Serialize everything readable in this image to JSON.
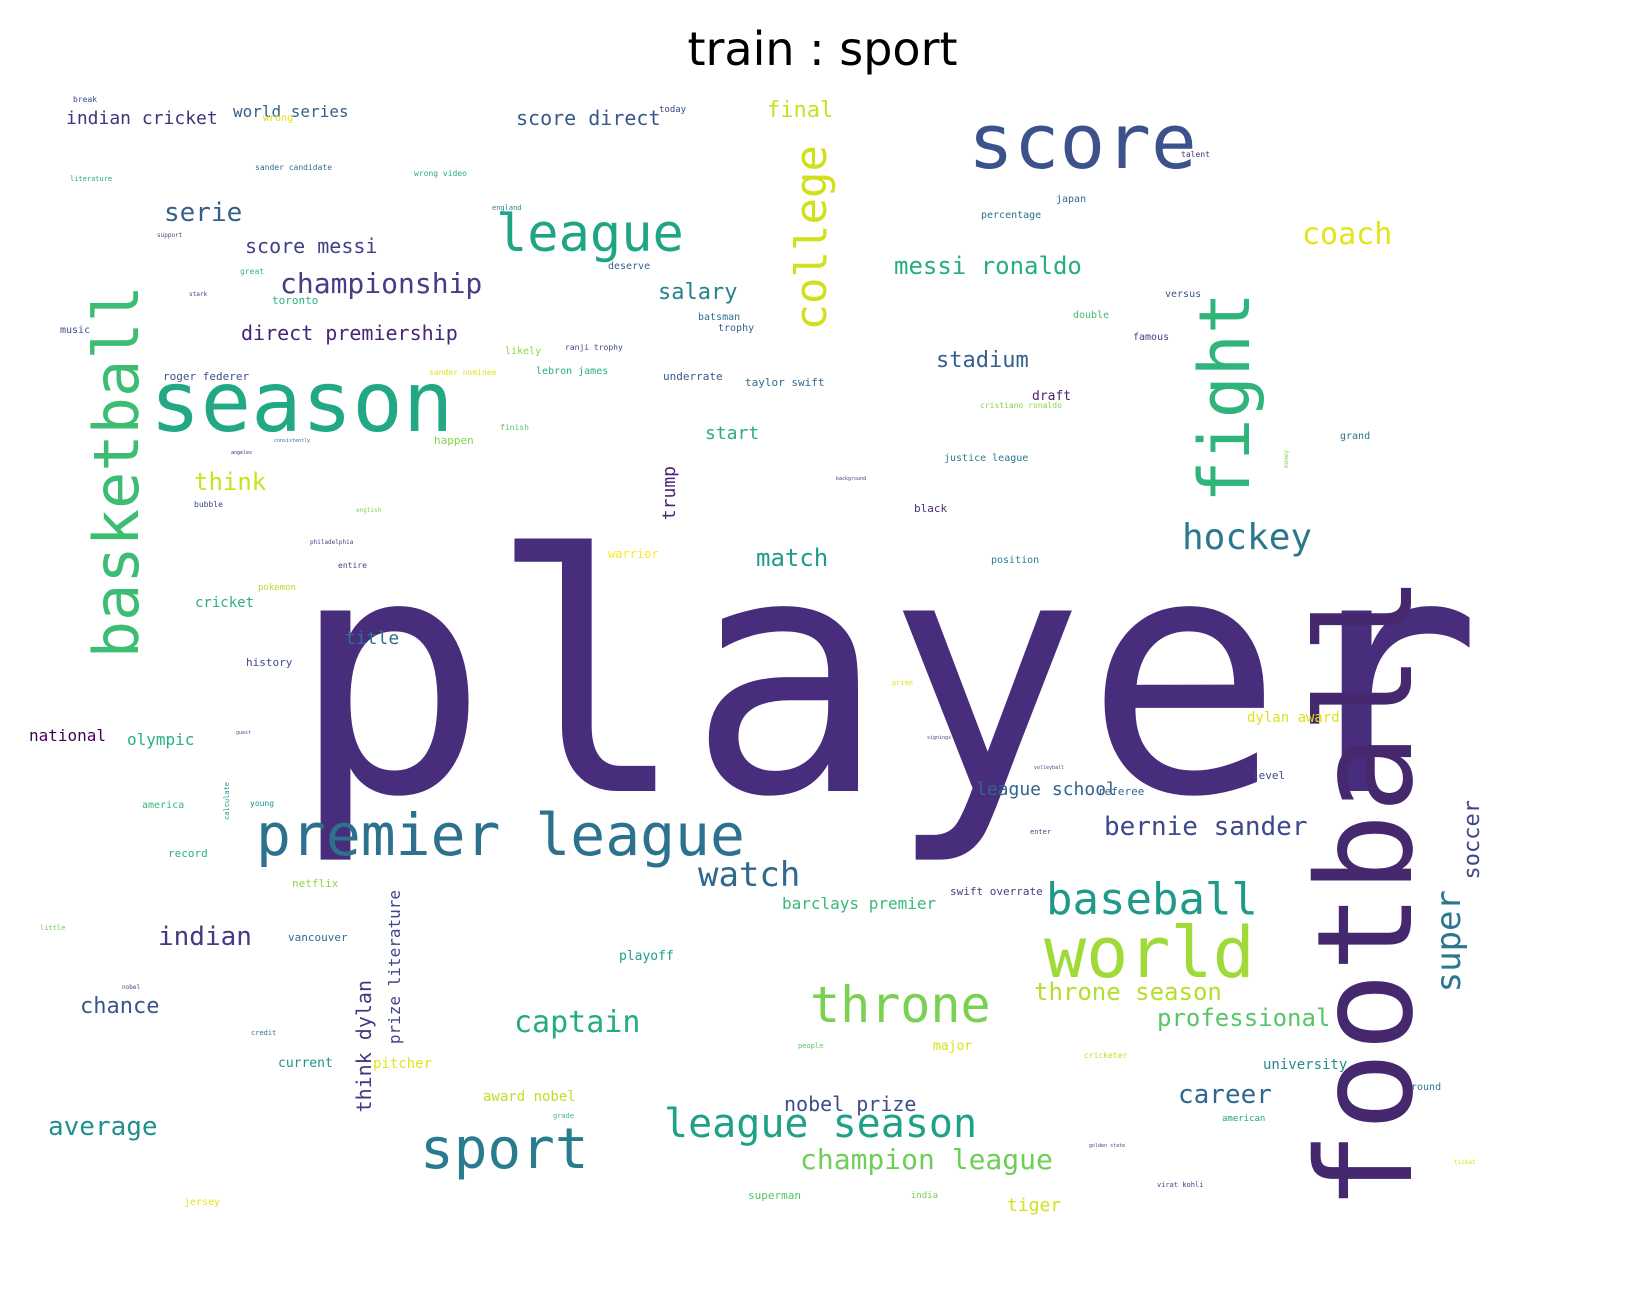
{
  "chart_data": {
    "type": "wordcloud",
    "title": "train : sport",
    "colormap": "viridis",
    "background": "#ffffff",
    "words": [
      {
        "text": "player",
        "weight": 1.0,
        "color": "#472d7b",
        "rotated": false
      },
      {
        "text": "football",
        "weight": 0.62,
        "color": "#46286f",
        "rotated": true
      },
      {
        "text": "season",
        "weight": 0.52,
        "color": "#22a884",
        "rotated": false
      },
      {
        "text": "basketball",
        "weight": 0.44,
        "color": "#3dbc74",
        "rotated": true
      },
      {
        "text": "score",
        "weight": 0.41,
        "color": "#3b528b",
        "rotated": false
      },
      {
        "text": "fight",
        "weight": 0.4,
        "color": "#2fb47c",
        "rotated": true
      },
      {
        "text": "premier league",
        "weight": 0.35,
        "color": "#2c728e",
        "rotated": false
      },
      {
        "text": "world",
        "weight": 0.34,
        "color": "#a0da39",
        "rotated": false
      },
      {
        "text": "college",
        "weight": 0.31,
        "color": "#d0e11c",
        "rotated": true
      },
      {
        "text": "league",
        "weight": 0.3,
        "color": "#20a486",
        "rotated": false
      },
      {
        "text": "sport",
        "weight": 0.3,
        "color": "#287c8e",
        "rotated": false
      },
      {
        "text": "throne",
        "weight": 0.29,
        "color": "#7ad151",
        "rotated": false
      },
      {
        "text": "baseball",
        "weight": 0.26,
        "color": "#1f9a8a",
        "rotated": false
      },
      {
        "text": "league season",
        "weight": 0.24,
        "color": "#1fa187",
        "rotated": false
      },
      {
        "text": "hockey",
        "weight": 0.22,
        "color": "#2a788e",
        "rotated": false
      },
      {
        "text": "watch",
        "weight": 0.21,
        "color": "#31688e",
        "rotated": false
      },
      {
        "text": "super",
        "weight": 0.2,
        "color": "#2a788e",
        "rotated": true
      },
      {
        "text": "championship",
        "weight": 0.19,
        "color": "#433e85",
        "rotated": false
      },
      {
        "text": "coach",
        "weight": 0.19,
        "color": "#e5e419",
        "rotated": false
      },
      {
        "text": "captain",
        "weight": 0.19,
        "color": "#25ab82",
        "rotated": false
      },
      {
        "text": "bernie sander",
        "weight": 0.18,
        "color": "#3e4989",
        "rotated": false
      },
      {
        "text": "champion league",
        "weight": 0.18,
        "color": "#6ece58",
        "rotated": false
      },
      {
        "text": "serie",
        "weight": 0.18,
        "color": "#35608d",
        "rotated": false
      },
      {
        "text": "messi ronaldo",
        "weight": 0.17,
        "color": "#27ad81",
        "rotated": false
      },
      {
        "text": "professional",
        "weight": 0.17,
        "color": "#56c667",
        "rotated": false
      },
      {
        "text": "throne season",
        "weight": 0.17,
        "color": "#b5de2b",
        "rotated": false
      },
      {
        "text": "average",
        "weight": 0.17,
        "color": "#21908d",
        "rotated": false
      },
      {
        "text": "indian",
        "weight": 0.17,
        "color": "#443983",
        "rotated": false
      },
      {
        "text": "career",
        "weight": 0.17,
        "color": "#31688e",
        "rotated": false
      },
      {
        "text": "match",
        "weight": 0.16,
        "color": "#1e9c89",
        "rotated": false
      },
      {
        "text": "think",
        "weight": 0.16,
        "color": "#cae11f",
        "rotated": false
      },
      {
        "text": "soccer",
        "weight": 0.15,
        "color": "#404688",
        "rotated": true
      },
      {
        "text": "chance",
        "weight": 0.15,
        "color": "#39568c",
        "rotated": false
      },
      {
        "text": "salary",
        "weight": 0.15,
        "color": "#26828e",
        "rotated": false
      },
      {
        "text": "stadium",
        "weight": 0.15,
        "color": "#355f8d",
        "rotated": false
      },
      {
        "text": "score messi",
        "weight": 0.15,
        "color": "#424186",
        "rotated": false
      },
      {
        "text": "think dylan",
        "weight": 0.15,
        "color": "#453781",
        "rotated": true
      },
      {
        "text": "nobel prize",
        "weight": 0.14,
        "color": "#3d4e8a",
        "rotated": false
      },
      {
        "text": "score direct",
        "weight": 0.14,
        "color": "#38598c",
        "rotated": false
      },
      {
        "text": "direct premiership",
        "weight": 0.14,
        "color": "#482677",
        "rotated": false
      },
      {
        "text": "final",
        "weight": 0.14,
        "color": "#c8e020",
        "rotated": false
      },
      {
        "text": "start",
        "weight": 0.13,
        "color": "#29af7f",
        "rotated": false
      },
      {
        "text": "trump",
        "weight": 0.13,
        "color": "#482475",
        "rotated": true
      },
      {
        "text": "league school",
        "weight": 0.13,
        "color": "#33638d",
        "rotated": false
      },
      {
        "text": "indian cricket",
        "weight": 0.13,
        "color": "#46327e",
        "rotated": false
      },
      {
        "text": "prize literature",
        "weight": 0.12,
        "color": "#414487",
        "rotated": true
      },
      {
        "text": "title",
        "weight": 0.12,
        "color": "#2c718e",
        "rotated": false
      },
      {
        "text": "olympic",
        "weight": 0.11,
        "color": "#2ab07f",
        "rotated": false
      },
      {
        "text": "national",
        "weight": 0.11,
        "color": "#440154",
        "rotated": false
      },
      {
        "text": "world series",
        "weight": 0.11,
        "color": "#34618d",
        "rotated": false
      },
      {
        "text": "barclays premier",
        "weight": 0.11,
        "color": "#38b977",
        "rotated": false
      },
      {
        "text": "tiger",
        "weight": 0.11,
        "color": "#d2e21b",
        "rotated": false
      },
      {
        "text": "dylan award",
        "weight": 0.1,
        "color": "#dde318",
        "rotated": false
      },
      {
        "text": "award nobel",
        "weight": 0.1,
        "color": "#bddf26",
        "rotated": false
      },
      {
        "text": "cricket",
        "weight": 0.1,
        "color": "#29af7f",
        "rotated": false
      },
      {
        "text": "pitcher",
        "weight": 0.1,
        "color": "#e2e418",
        "rotated": false
      },
      {
        "text": "university",
        "weight": 0.09,
        "color": "#23898e",
        "rotated": false
      },
      {
        "text": "playoff",
        "weight": 0.09,
        "color": "#1f9e89",
        "rotated": false
      },
      {
        "text": "current",
        "weight": 0.09,
        "color": "#21918c",
        "rotated": false
      },
      {
        "text": "vancouver",
        "weight": 0.08,
        "color": "#2d708e",
        "rotated": false
      },
      {
        "text": "draft",
        "weight": 0.08,
        "color": "#481f70",
        "rotated": false
      },
      {
        "text": "major",
        "weight": 0.08,
        "color": "#d8e219",
        "rotated": false
      },
      {
        "text": "happen",
        "weight": 0.07,
        "color": "#84d44b",
        "rotated": false
      },
      {
        "text": "warrior",
        "weight": 0.07,
        "color": "#fde725",
        "rotated": false
      },
      {
        "text": "netflix",
        "weight": 0.07,
        "color": "#90d743",
        "rotated": false
      },
      {
        "text": "history",
        "weight": 0.07,
        "color": "#3e4a89",
        "rotated": false
      },
      {
        "text": "record",
        "weight": 0.07,
        "color": "#2eb37c",
        "rotated": false
      },
      {
        "text": "referee",
        "weight": 0.07,
        "color": "#31688e",
        "rotated": false
      },
      {
        "text": "level",
        "weight": 0.07,
        "color": "#3e4989",
        "rotated": false
      },
      {
        "text": "taylor swift",
        "weight": 0.07,
        "color": "#306a8e",
        "rotated": false
      },
      {
        "text": "swift overrate",
        "weight": 0.07,
        "color": "#433e85",
        "rotated": false
      },
      {
        "text": "superman",
        "weight": 0.07,
        "color": "#52c569",
        "rotated": false
      },
      {
        "text": "toronto",
        "weight": 0.07,
        "color": "#2db27d",
        "rotated": false
      },
      {
        "text": "lebron james",
        "weight": 0.06,
        "color": "#28ae80",
        "rotated": false
      },
      {
        "text": "roger federer",
        "weight": 0.06,
        "color": "#3c4f8a",
        "rotated": false
      },
      {
        "text": "black",
        "weight": 0.06,
        "color": "#472c7a",
        "rotated": false
      },
      {
        "text": "stadium_pad",
        "weight": 0.0,
        "color": "#ffffff",
        "rotated": false
      },
      {
        "text": "batsman",
        "weight": 0.06,
        "color": "#2c728e",
        "rotated": false
      },
      {
        "text": "underrate",
        "weight": 0.06,
        "color": "#38588c",
        "rotated": false
      },
      {
        "text": "america",
        "weight": 0.06,
        "color": "#35b779",
        "rotated": false
      },
      {
        "text": "jersey",
        "weight": 0.06,
        "color": "#e7e419",
        "rotated": false
      },
      {
        "text": "justice league",
        "weight": 0.06,
        "color": "#287d8e",
        "rotated": false
      },
      {
        "text": "famous",
        "weight": 0.06,
        "color": "#3f4788",
        "rotated": false
      },
      {
        "text": "round",
        "weight": 0.06,
        "color": "#2a788e",
        "rotated": false
      },
      {
        "text": "position",
        "weight": 0.06,
        "color": "#277f8e",
        "rotated": false
      },
      {
        "text": "percentage",
        "weight": 0.06,
        "color": "#2c728e",
        "rotated": false
      },
      {
        "text": "japan",
        "weight": 0.06,
        "color": "#31688e",
        "rotated": false
      },
      {
        "text": "deserve",
        "weight": 0.06,
        "color": "#34618d",
        "rotated": false
      },
      {
        "text": "trophy",
        "weight": 0.06,
        "color": "#33638d",
        "rotated": false
      },
      {
        "text": "versus",
        "weight": 0.06,
        "color": "#3b528b",
        "rotated": false
      },
      {
        "text": "double",
        "weight": 0.06,
        "color": "#40bd72",
        "rotated": false
      },
      {
        "text": "grand",
        "weight": 0.06,
        "color": "#2a788e",
        "rotated": false
      },
      {
        "text": "today",
        "weight": 0.05,
        "color": "#3e4a89",
        "rotated": false
      },
      {
        "text": "music",
        "weight": 0.05,
        "color": "#3b528b",
        "rotated": false
      },
      {
        "text": "likely",
        "weight": 0.05,
        "color": "#8ed645",
        "rotated": false
      },
      {
        "text": "pokemon",
        "weight": 0.05,
        "color": "#b2dd2d",
        "rotated": false
      },
      {
        "text": "wrong",
        "weight": 0.05,
        "color": "#dfe318",
        "rotated": false
      },
      {
        "text": "american",
        "weight": 0.05,
        "color": "#20a386",
        "rotated": false
      },
      {
        "text": "india",
        "weight": 0.05,
        "color": "#73d056",
        "rotated": false
      },
      {
        "text": "young",
        "weight": 0.05,
        "color": "#21918c",
        "rotated": false
      },
      {
        "text": "cricketer",
        "weight": 0.05,
        "color": "#c2df23",
        "rotated": false
      },
      {
        "text": "ranji trophy",
        "weight": 0.04,
        "color": "#3e4989",
        "rotated": false
      },
      {
        "text": "sander candidate",
        "weight": 0.04,
        "color": "#2d708e",
        "rotated": false
      },
      {
        "text": "wrong video",
        "weight": 0.04,
        "color": "#25ac82",
        "rotated": false
      },
      {
        "text": "entire",
        "weight": 0.04,
        "color": "#404588",
        "rotated": false
      },
      {
        "text": "finish",
        "weight": 0.04,
        "color": "#56c667",
        "rotated": false
      },
      {
        "text": "great",
        "weight": 0.04,
        "color": "#35b779",
        "rotated": false
      },
      {
        "text": "bubble",
        "weight": 0.04,
        "color": "#3e4a89",
        "rotated": false
      },
      {
        "text": "break",
        "weight": 0.04,
        "color": "#3e4a89",
        "rotated": false
      },
      {
        "text": "talent",
        "weight": 0.04,
        "color": "#46327e",
        "rotated": false
      },
      {
        "text": "sander nominee",
        "weight": 0.04,
        "color": "#dde318",
        "rotated": false
      },
      {
        "text": "cristiano ronaldo",
        "weight": 0.04,
        "color": "#86d549",
        "rotated": false
      },
      {
        "text": "england",
        "weight": 0.04,
        "color": "#25848e",
        "rotated": false
      },
      {
        "text": "literature",
        "weight": 0.03,
        "color": "#22a884",
        "rotated": false
      },
      {
        "text": "support",
        "weight": 0.03,
        "color": "#3e4a89",
        "rotated": false
      },
      {
        "text": "stark",
        "weight": 0.03,
        "color": "#3e4989",
        "rotated": false
      },
      {
        "text": "philadelphia",
        "weight": 0.03,
        "color": "#404688",
        "rotated": false
      },
      {
        "text": "english",
        "weight": 0.03,
        "color": "#7fd34e",
        "rotated": false
      },
      {
        "text": "angeles",
        "weight": 0.03,
        "color": "#472a7a",
        "rotated": false
      },
      {
        "text": "consistently",
        "weight": 0.03,
        "color": "#2e6f8e",
        "rotated": false
      },
      {
        "text": "prime",
        "weight": 0.03,
        "color": "#e2e418",
        "rotated": false
      },
      {
        "text": "background",
        "weight": 0.03,
        "color": "#3f4788",
        "rotated": false
      },
      {
        "text": "calculate",
        "weight": 0.03,
        "color": "#1f998a",
        "rotated": true
      },
      {
        "text": "little",
        "weight": 0.03,
        "color": "#6ece58",
        "rotated": false
      },
      {
        "text": "nobel",
        "weight": 0.03,
        "color": "#3e4a89",
        "rotated": false
      },
      {
        "text": "credit",
        "weight": 0.03,
        "color": "#2c728e",
        "rotated": false
      },
      {
        "text": "guest",
        "weight": 0.03,
        "color": "#3b528b",
        "rotated": false
      },
      {
        "text": "people",
        "weight": 0.03,
        "color": "#56c667",
        "rotated": false
      },
      {
        "text": "grade",
        "weight": 0.03,
        "color": "#3aba76",
        "rotated": false
      },
      {
        "text": "league_pad",
        "weight": 0.0,
        "color": "#ffffff",
        "rotated": false
      },
      {
        "text": "enter",
        "weight": 0.03,
        "color": "#3e4a89",
        "rotated": false
      },
      {
        "text": "golden state",
        "weight": 0.03,
        "color": "#3e4989",
        "rotated": false
      },
      {
        "text": "virat kohli",
        "weight": 0.03,
        "color": "#404688",
        "rotated": false
      },
      {
        "text": "volleyball",
        "weight": 0.03,
        "color": "#3e4a89",
        "rotated": false
      },
      {
        "text": "signings",
        "weight": 0.03,
        "color": "#3e4989",
        "rotated": false
      },
      {
        "text": "money",
        "weight": 0.03,
        "color": "#7ad151",
        "rotated": true
      },
      {
        "text": "ticket",
        "weight": 0.03,
        "color": "#dde318",
        "rotated": false
      }
    ]
  }
}
